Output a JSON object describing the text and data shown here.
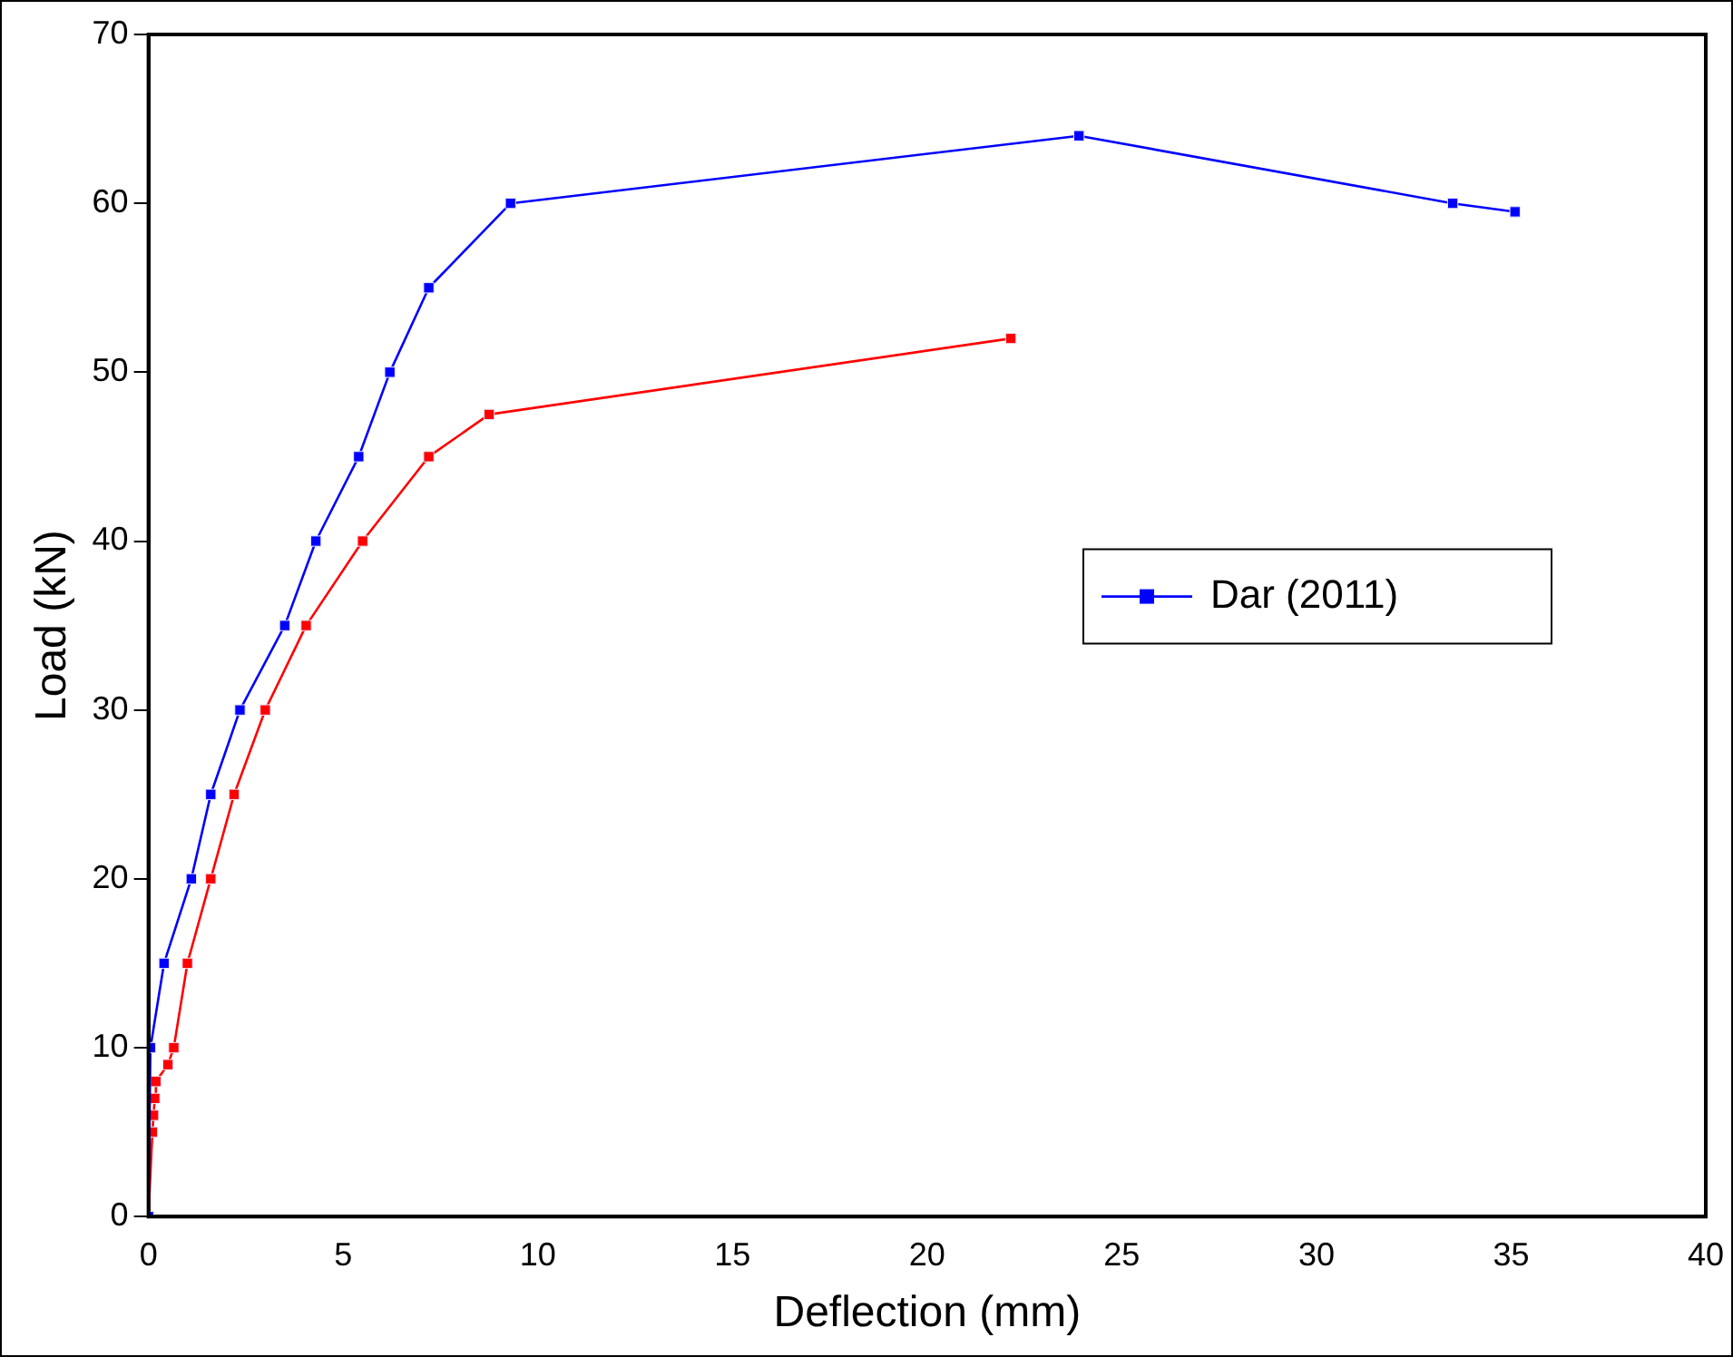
{
  "chart_data": {
    "type": "line",
    "xlabel": "Deflection (mm)",
    "ylabel": "Load (kN)",
    "xlim": [
      0,
      40
    ],
    "ylim": [
      0,
      70
    ],
    "xticks": [
      0,
      5,
      10,
      15,
      20,
      25,
      30,
      35,
      40
    ],
    "yticks": [
      0,
      10,
      20,
      30,
      40,
      50,
      60,
      70
    ],
    "grid": false,
    "legend": "right",
    "marker": "square",
    "line_style": "solid",
    "series": [
      {
        "name": "Dar (2011)",
        "color": "#0000ff",
        "x": [
          0,
          0.05,
          0.4,
          1.1,
          1.6,
          2.35,
          3.5,
          4.3,
          5.4,
          6.2,
          7.2,
          9.3,
          23.9,
          33.5,
          35.1
        ],
        "values": [
          0,
          10,
          15,
          20,
          25,
          30,
          35,
          40,
          45,
          50,
          55,
          60,
          64,
          60,
          59.5
        ]
      },
      {
        "color": "#ff0000",
        "x": [
          0,
          0.1,
          0.13,
          0.16,
          0.19,
          0.5,
          0.65,
          1.0,
          1.6,
          2.2,
          3.0,
          4.05,
          5.5,
          7.2,
          8.75,
          22.15
        ],
        "values": [
          0,
          5,
          6,
          7,
          8,
          9,
          10,
          15,
          20,
          25,
          30,
          35,
          40,
          45,
          47.5,
          52
        ]
      }
    ]
  }
}
